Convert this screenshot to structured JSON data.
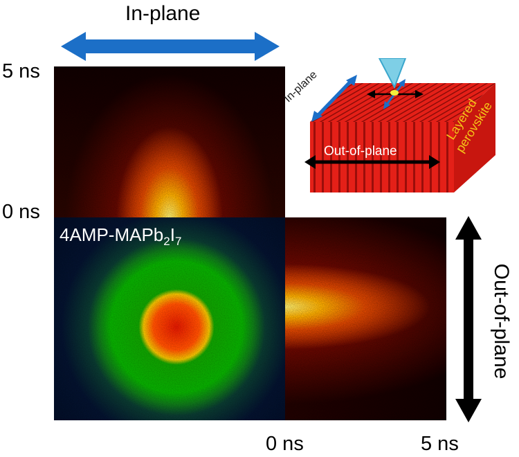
{
  "labels": {
    "in_plane_top": "In-plane",
    "out_of_plane_right": "Out-of-plane",
    "time_5ns_left": "5 ns",
    "time_0ns_left": "0 ns",
    "time_0ns_bottom": "0 ns",
    "time_5ns_bottom": "5 ns"
  },
  "sample": {
    "name_prefix": "4AMP-MAPb",
    "sub1": "2",
    "middle": "I",
    "sub2": "7"
  },
  "inset": {
    "in_plane": "In-plane",
    "out_of_plane": "Out-of-plane",
    "material_line1": "Layered",
    "material_line2": "perovskite"
  },
  "colors": {
    "in_plane_arrow": "#1c6fc7",
    "out_of_plane_arrow": "#000000",
    "slab_red": "#e42018",
    "material_text": "#f5c518",
    "probe_cone": "#7ecfe6"
  }
}
